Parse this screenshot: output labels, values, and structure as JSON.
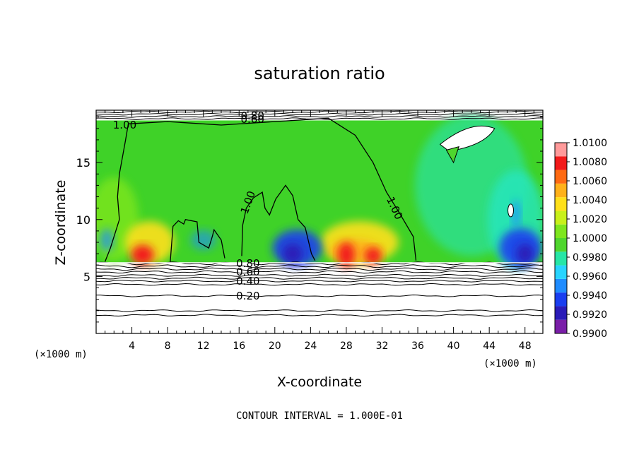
{
  "chart_data": {
    "type": "heatmap",
    "title": "saturation ratio",
    "xlabel": "X-coordinate",
    "ylabel": "Z-coordinate",
    "x_unit": "(×1000 m)",
    "xlim": [
      0,
      50
    ],
    "ylim": [
      0,
      19.6
    ],
    "x_ticks": [
      4,
      8,
      12,
      16,
      20,
      24,
      28,
      32,
      36,
      40,
      44,
      48
    ],
    "y_ticks": [
      5,
      10,
      15
    ],
    "footer": "CONTOUR INTERVAL = 1.000E-01",
    "colorbar": {
      "min": 0.99,
      "max": 1.01,
      "labels": [
        "1.0100",
        "1.0080",
        "1.0060",
        "1.0040",
        "1.0020",
        "1.0000",
        "0.9980",
        "0.9960",
        "0.9940",
        "0.9920",
        "0.9900"
      ],
      "colors": [
        "#7a1ea8",
        "#2a1bb8",
        "#1a3ef0",
        "#1f8cff",
        "#28d4ff",
        "#27e6a6",
        "#4fd62e",
        "#7ee61e",
        "#c8f01a",
        "#ffe01a",
        "#ffb11a",
        "#ff6a12",
        "#f21a1a",
        "#ff9a9a"
      ]
    },
    "contour_labels": [
      {
        "text": "1.00",
        "x": 3.2,
        "y": 18.3
      },
      {
        "text": "1.00",
        "x": 17.0,
        "y": 11.5
      },
      {
        "text": "1.00",
        "x": 33.4,
        "y": 11.0
      },
      {
        "text": "0.80",
        "x": 17.0,
        "y": 6.15
      },
      {
        "text": "0.60",
        "x": 17.0,
        "y": 5.4
      },
      {
        "text": "0.40",
        "x": 17.0,
        "y": 4.6
      },
      {
        "text": "0.20",
        "x": 17.0,
        "y": 3.3
      },
      {
        "text": "0.80",
        "x": 17.5,
        "y": 19.1
      },
      {
        "text": "0.60",
        "x": 17.5,
        "y": 18.8
      }
    ]
  }
}
